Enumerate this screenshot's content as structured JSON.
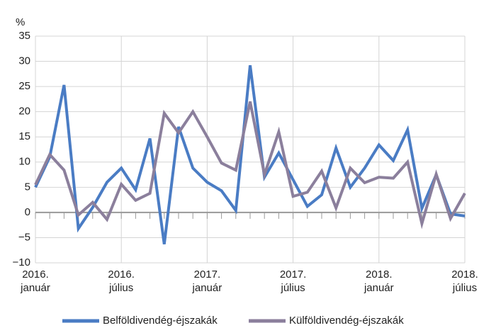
{
  "chart_data": {
    "type": "line",
    "y_axis_label": "%",
    "categories": [
      "2016.\njanuár",
      null,
      null,
      null,
      null,
      null,
      "2016.\njúlius",
      null,
      null,
      null,
      null,
      null,
      "2017.\njanuár",
      null,
      null,
      null,
      null,
      null,
      "2017.\njúlius",
      null,
      null,
      null,
      null,
      null,
      "2018.\njanuár",
      null,
      null,
      null,
      null,
      null,
      "2018.\njúlius"
    ],
    "series": [
      {
        "name": "Belföldivendég-éjszakák",
        "color": "#4a7cc4",
        "values": [
          5,
          11,
          25.3,
          -3.2,
          1,
          6,
          8.8,
          4.5,
          14.7,
          -6.3,
          17,
          8.8,
          6,
          4.3,
          0.4,
          29.2,
          7,
          11.8,
          6.5,
          1.2,
          3.5,
          12.8,
          5,
          8.8,
          13.4,
          10.3,
          16.4,
          0.8,
          7.5,
          -0.3,
          -0.7
        ]
      },
      {
        "name": "Külföldivendég-éjszakák",
        "color": "#8b7f9c",
        "values": [
          5.5,
          11.5,
          8.4,
          -0.5,
          2,
          -1.4,
          5.6,
          2.4,
          3.8,
          19.7,
          15.8,
          20,
          15,
          9.8,
          8.4,
          22,
          7.5,
          16,
          3.2,
          4,
          8.2,
          0.9,
          8.8,
          5.9,
          7,
          6.8,
          10,
          -2.2,
          7.6,
          -1.2,
          3.8
        ]
      }
    ],
    "ylim": [
      -10,
      35
    ],
    "yticks": [
      {
        "value": -10,
        "label": "−10"
      },
      {
        "value": -5,
        "label": "−5"
      },
      0,
      5,
      10,
      15,
      20,
      25,
      30,
      35
    ],
    "grid": true,
    "legend": "bottom"
  }
}
